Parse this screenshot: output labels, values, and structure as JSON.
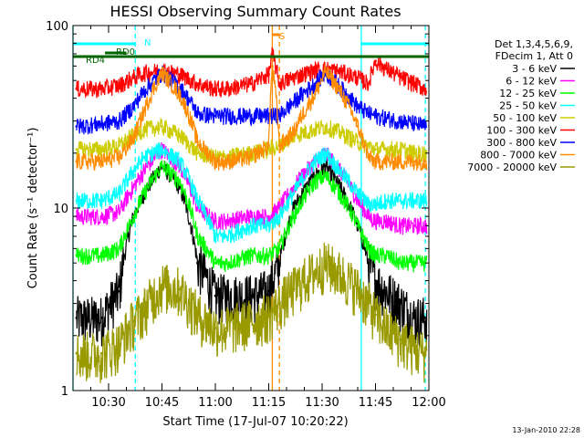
{
  "chart_data": {
    "type": "line",
    "title": "HESSI Observing Summary Count Rates",
    "xlabel": "Start Time (17-Jul-07 10:20:22)",
    "ylabel": "Count Rate (s⁻¹ detector⁻¹)",
    "y_scale": "log",
    "ylim": [
      1,
      100
    ],
    "xlim_minutes": [
      20,
      120
    ],
    "x_ticks": [
      {
        "minute": 30,
        "label": "10:30"
      },
      {
        "minute": 45,
        "label": "10:45"
      },
      {
        "minute": 60,
        "label": "11:00"
      },
      {
        "minute": 75,
        "label": "11:15"
      },
      {
        "minute": 90,
        "label": "11:30"
      },
      {
        "minute": 105,
        "label": "11:45"
      },
      {
        "minute": 120,
        "label": "12:00"
      }
    ],
    "y_ticks": [
      {
        "value": 1,
        "label": "1"
      },
      {
        "value": 10,
        "label": "10"
      },
      {
        "value": 100,
        "label": "100"
      }
    ],
    "grid": false,
    "legend_position": "right",
    "legend_header": [
      "Det 1,3,4,5,6,9,",
      "FDecim 1, Att 0"
    ],
    "x_unit": "minutes after 10:00",
    "series": [
      {
        "name": "3 - 6 keV",
        "color": "#000000",
        "x": [
          21,
          28,
          33,
          37,
          40,
          45,
          50,
          55,
          60,
          63,
          70,
          75,
          78,
          82,
          88,
          91,
          95,
          100,
          103,
          105,
          108,
          112,
          116,
          119
        ],
        "y": [
          2.5,
          2.5,
          3.5,
          9,
          12,
          17,
          13,
          5,
          3.3,
          3.3,
          3.3,
          3.5,
          5,
          10,
          15,
          17,
          13,
          8,
          5,
          4,
          3.5,
          3,
          2.5,
          2.5
        ]
      },
      {
        "name": "6 - 12 keV",
        "color": "#ff00ff",
        "x": [
          21,
          28,
          33,
          37,
          40,
          45,
          50,
          55,
          60,
          63,
          70,
          75,
          78,
          82,
          88,
          91,
          95,
          100,
          103,
          105,
          108,
          112,
          116,
          119
        ],
        "y": [
          9,
          9,
          9.5,
          13,
          16,
          21,
          17,
          10,
          8.5,
          8.5,
          9,
          9,
          10,
          13,
          18,
          20,
          16,
          11,
          9,
          8.5,
          8.5,
          8,
          8,
          8
        ]
      },
      {
        "name": "12 - 25 keV",
        "color": "#00ff00",
        "x": [
          21,
          28,
          33,
          37,
          40,
          45,
          50,
          55,
          60,
          63,
          70,
          75,
          78,
          82,
          88,
          91,
          95,
          100,
          103,
          105,
          108,
          112,
          116,
          119
        ],
        "y": [
          5.5,
          5.5,
          6,
          9,
          12,
          17,
          14,
          7,
          5,
          5,
          5.5,
          5.5,
          6,
          9,
          14,
          15,
          12,
          8,
          6,
          5.5,
          5.5,
          5,
          5,
          5
        ]
      },
      {
        "name": "25 - 50 keV",
        "color": "#00ffff",
        "x": [
          21,
          28,
          33,
          37,
          40,
          45,
          50,
          55,
          60,
          63,
          70,
          75,
          78,
          82,
          88,
          91,
          95,
          100,
          103,
          105,
          108,
          112,
          116,
          119
        ],
        "y": [
          11,
          11,
          12,
          16,
          19,
          21,
          18,
          11,
          7,
          7,
          8,
          8,
          9,
          12,
          18,
          20,
          16,
          12,
          10.5,
          10.5,
          11,
          11,
          11,
          11
        ]
      },
      {
        "name": "50 - 100 keV",
        "color": "#cccc00",
        "x": [
          21,
          28,
          33,
          37,
          40,
          45,
          50,
          55,
          60,
          63,
          70,
          75,
          78,
          82,
          88,
          91,
          95,
          100,
          103,
          105,
          108,
          112,
          116,
          119
        ],
        "y": [
          21,
          21,
          22,
          25,
          27,
          28,
          25,
          20,
          19,
          19,
          20,
          21,
          22,
          25,
          27,
          28,
          26,
          23,
          22,
          21,
          21,
          21,
          20,
          20
        ]
      },
      {
        "name": "100 - 300 keV",
        "color": "#ff0000",
        "x": [
          21,
          28,
          33,
          37,
          40,
          45,
          50,
          55,
          60,
          63,
          70,
          75,
          76,
          78,
          82,
          88,
          91,
          95,
          100,
          103,
          105,
          108,
          112,
          116,
          119
        ],
        "y": [
          45,
          45,
          47,
          52,
          55,
          57,
          54,
          48,
          45,
          45,
          48,
          54,
          70,
          48,
          52,
          57,
          58,
          56,
          52,
          48,
          64,
          58,
          52,
          48,
          45
        ]
      },
      {
        "name": "300 - 800 keV",
        "color": "#0000ff",
        "x": [
          21,
          28,
          33,
          37,
          40,
          45,
          50,
          55,
          60,
          63,
          70,
          75,
          78,
          82,
          88,
          91,
          95,
          100,
          103,
          105,
          108,
          112,
          116,
          119
        ],
        "y": [
          28,
          29,
          30,
          36,
          44,
          55,
          46,
          33,
          32,
          32,
          32,
          32,
          32,
          38,
          48,
          55,
          46,
          36,
          33,
          32,
          31,
          30,
          29,
          28
        ]
      },
      {
        "name": "800 - 7000 keV",
        "color": "#ff8c00",
        "x": [
          21,
          28,
          33,
          37,
          40,
          45,
          50,
          55,
          60,
          63,
          70,
          75,
          76,
          78,
          82,
          88,
          91,
          95,
          100,
          103,
          105,
          108,
          112,
          116,
          119
        ],
        "y": [
          18,
          18,
          19,
          24,
          34,
          55,
          42,
          23,
          18,
          18,
          19,
          22,
          60,
          22,
          26,
          42,
          56,
          44,
          28,
          19,
          18,
          18,
          18,
          18,
          18
        ]
      },
      {
        "name": "7000 - 20000 keV",
        "color": "#999900",
        "x": [
          21,
          28,
          33,
          37,
          40,
          45,
          50,
          55,
          60,
          63,
          70,
          75,
          78,
          82,
          88,
          91,
          95,
          100,
          103,
          105,
          108,
          112,
          116,
          119
        ],
        "y": [
          1.6,
          1.6,
          1.8,
          2.4,
          2.8,
          3.8,
          3.6,
          2.6,
          2.2,
          2.2,
          2.4,
          2.6,
          3,
          3.6,
          4.5,
          5,
          4.4,
          3.6,
          3,
          2.6,
          2.2,
          1.9,
          1.7,
          1.6
        ]
      }
    ],
    "annotations": [
      {
        "text": "N",
        "color": "#00ffff",
        "x": 38,
        "x_end": 38
      },
      {
        "text": "RD0",
        "color": "#006400",
        "x": 30
      },
      {
        "text": "RD4",
        "color": "#006400",
        "x": 23
      },
      {
        "text": "S",
        "color": "#ff8c00",
        "x": 76
      }
    ],
    "state_bars": [
      {
        "label": "N",
        "color": "#00ffff",
        "segments": [
          [
            20,
            37.5
          ],
          [
            101,
            120
          ]
        ]
      },
      {
        "label": "RD0",
        "color": "#006400",
        "segments": [
          [
            29,
            35
          ]
        ]
      },
      {
        "label": "RD4",
        "color": "#006400",
        "segments": [
          [
            20,
            60
          ],
          [
            60,
            120
          ]
        ]
      },
      {
        "label": "S",
        "color": "#ff8c00",
        "segments": [
          [
            76,
            78
          ]
        ]
      }
    ],
    "vertical_lines": [
      {
        "x": 20,
        "color": "#00ffff",
        "style": "solid"
      },
      {
        "x": 37.5,
        "color": "#00ffff",
        "style": "dashed"
      },
      {
        "x": 101,
        "color": "#00ffff",
        "style": "solid"
      },
      {
        "x": 119,
        "color": "#00ffff",
        "style": "dashed"
      },
      {
        "x": 76,
        "color": "#ff8c00",
        "style": "solid"
      },
      {
        "x": 78,
        "color": "#ff8c00",
        "style": "dashed"
      }
    ],
    "footer_stamp": "13-Jan-2010 22:28"
  }
}
